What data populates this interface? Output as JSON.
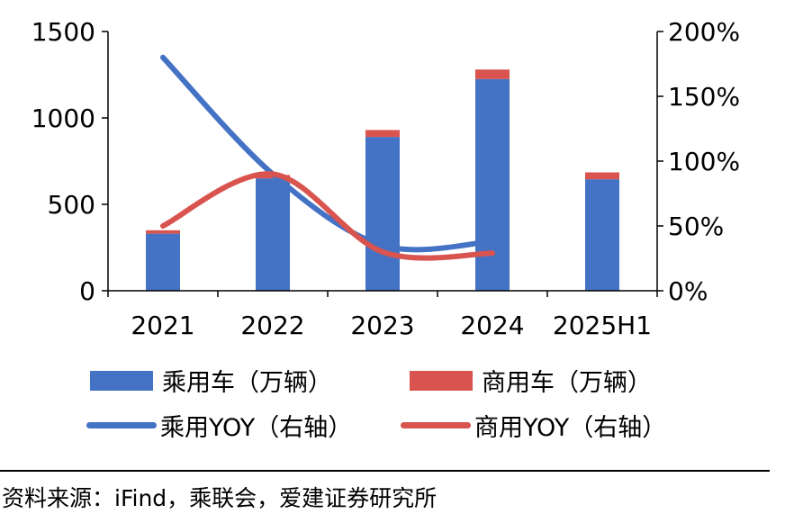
{
  "chart_data": {
    "type": "bar",
    "categories": [
      "2021",
      "2022",
      "2023",
      "2024",
      "2025H1"
    ],
    "series": [
      {
        "name": "乘用车（万辆）",
        "kind": "bar",
        "axis": "left",
        "stack": "total",
        "values": [
          330,
          650,
          890,
          1225,
          645
        ],
        "color": "#4472C4"
      },
      {
        "name": "商用车（万辆）",
        "kind": "bar",
        "axis": "left",
        "stack": "total",
        "values": [
          20,
          20,
          40,
          55,
          40
        ],
        "color": "#D9534F"
      },
      {
        "name": "乘用YOY（右轴）",
        "kind": "line",
        "axis": "right",
        "values": [
          180,
          90,
          35,
          38,
          null
        ],
        "color": "#4472C4"
      },
      {
        "name": "商用YOY（右轴）",
        "kind": "line",
        "axis": "right",
        "values": [
          50,
          90,
          30,
          29,
          null
        ],
        "color": "#D9534F"
      }
    ],
    "ylim": [
      0,
      1500
    ],
    "yticks": [
      "0",
      "500",
      "1000",
      "1500"
    ],
    "y2lim": [
      0,
      200
    ],
    "y2ticks": [
      "0%",
      "50%",
      "100%",
      "150%",
      "200%"
    ],
    "legend": "bottom"
  },
  "legend": {
    "items": [
      {
        "label": "乘用车（万辆）",
        "icon": "bar-swatch",
        "color": "#4472C4"
      },
      {
        "label": "商用车（万辆）",
        "icon": "bar-swatch",
        "color": "#D9534F"
      },
      {
        "label": "乘用YOY（右轴）",
        "icon": "line-swatch",
        "color": "#4472C4"
      },
      {
        "label": "商用YOY（右轴）",
        "icon": "line-swatch",
        "color": "#D9534F"
      }
    ]
  },
  "source": "资料来源：iFind，乘联会，爱建证券研究所"
}
